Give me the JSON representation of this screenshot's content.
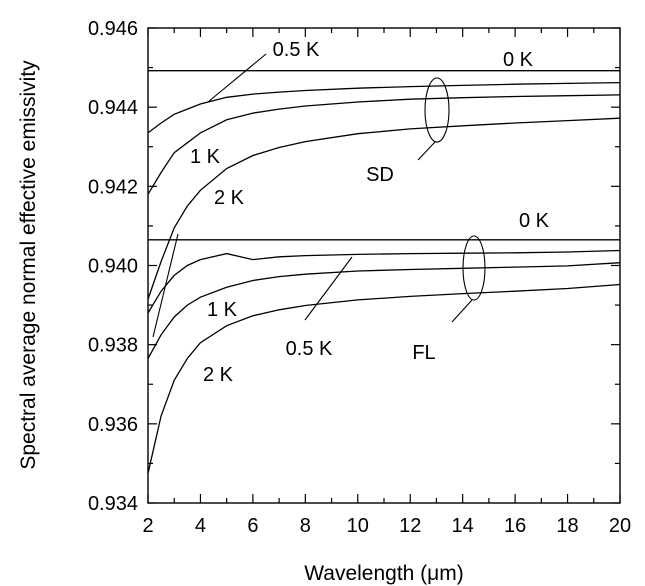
{
  "chart_data": {
    "type": "line",
    "title": "",
    "xlabel": "Wavelength (μm)",
    "ylabel": "Spectral average normal effective emissivity",
    "xlim": [
      2,
      20
    ],
    "ylim": [
      0.934,
      0.946
    ],
    "x_ticks": [
      2,
      4,
      6,
      8,
      10,
      12,
      14,
      16,
      18,
      20
    ],
    "x_tick_labels": [
      "2",
      "4",
      "6",
      "8",
      "10",
      "12",
      "14",
      "16",
      "18",
      "20"
    ],
    "y_ticks": [
      0.934,
      0.936,
      0.938,
      0.94,
      0.942,
      0.944,
      0.946
    ],
    "y_tick_labels": [
      "0.934",
      "0.936",
      "0.938",
      "0.940",
      "0.942",
      "0.944",
      "0.946"
    ],
    "grid": false,
    "series": [
      {
        "group": "SD",
        "label": "0 K",
        "x": [
          2,
          4,
          6,
          8,
          10,
          12,
          14,
          16,
          18,
          20
        ],
        "y": [
          0.94492,
          0.94492,
          0.94492,
          0.94492,
          0.94492,
          0.94492,
          0.94492,
          0.94492,
          0.94492,
          0.94492
        ]
      },
      {
        "group": "SD",
        "label": "0.5 K",
        "x": [
          2,
          2.5,
          3,
          3.5,
          4,
          5,
          6,
          7,
          8,
          10,
          12,
          14,
          16,
          18,
          20
        ],
        "y": [
          0.94335,
          0.9436,
          0.94382,
          0.94395,
          0.94408,
          0.94425,
          0.94433,
          0.94438,
          0.94442,
          0.94448,
          0.94452,
          0.94455,
          0.94458,
          0.9446,
          0.94462
        ]
      },
      {
        "group": "SD",
        "label": "1 K",
        "x": [
          2,
          2.5,
          3,
          3.5,
          4,
          5,
          6,
          7,
          8,
          10,
          12,
          14,
          16,
          18,
          20
        ],
        "y": [
          0.9418,
          0.94235,
          0.94285,
          0.9431,
          0.94335,
          0.94368,
          0.94385,
          0.94395,
          0.94403,
          0.94413,
          0.9442,
          0.94424,
          0.94427,
          0.94429,
          0.94431
        ]
      },
      {
        "group": "SD",
        "label": "2 K",
        "x": [
          2,
          2.5,
          3,
          3.5,
          4,
          5,
          6,
          7,
          8,
          10,
          12,
          14,
          16,
          18,
          20
        ],
        "y": [
          0.93915,
          0.9401,
          0.94095,
          0.9415,
          0.9419,
          0.94245,
          0.94278,
          0.94298,
          0.94313,
          0.94333,
          0.94345,
          0.94353,
          0.9436,
          0.94366,
          0.94372
        ]
      },
      {
        "group": "FL",
        "label": "0 K",
        "x": [
          2,
          4,
          6,
          8,
          10,
          12,
          14,
          16,
          18,
          20
        ],
        "y": [
          0.94065,
          0.94065,
          0.94065,
          0.94065,
          0.94065,
          0.94065,
          0.94065,
          0.94065,
          0.94065,
          0.94065
        ]
      },
      {
        "group": "FL",
        "label": "0.5 K",
        "x": [
          2,
          2.5,
          3,
          3.5,
          4,
          5,
          6,
          7,
          8,
          10,
          12,
          14,
          16,
          18,
          20
        ],
        "y": [
          0.9388,
          0.93935,
          0.93975,
          0.94,
          0.94015,
          0.9403,
          0.94015,
          0.94022,
          0.94025,
          0.94028,
          0.9403,
          0.94031,
          0.94032,
          0.94034,
          0.94038
        ]
      },
      {
        "group": "FL",
        "label": "1 K",
        "x": [
          2,
          2.5,
          3,
          3.5,
          4,
          5,
          6,
          7,
          8,
          10,
          12,
          14,
          16,
          18,
          20
        ],
        "y": [
          0.93765,
          0.93825,
          0.9387,
          0.939,
          0.9392,
          0.93945,
          0.93962,
          0.93972,
          0.93978,
          0.93986,
          0.9399,
          0.93993,
          0.93996,
          0.93999,
          0.94007
        ]
      },
      {
        "group": "FL",
        "label": "2 K",
        "x": [
          2,
          2.5,
          3,
          3.5,
          4,
          5,
          6,
          7,
          8,
          10,
          12,
          14,
          16,
          18,
          20
        ],
        "y": [
          0.93475,
          0.9362,
          0.9371,
          0.93765,
          0.93805,
          0.93848,
          0.93873,
          0.93888,
          0.93899,
          0.93913,
          0.93922,
          0.93929,
          0.93935,
          0.93942,
          0.93952
        ]
      }
    ],
    "annotations": [
      {
        "id": "sd-0k",
        "text": "0 K"
      },
      {
        "id": "sd-05k",
        "text": "0.5 K"
      },
      {
        "id": "sd-1k",
        "text": "1 K"
      },
      {
        "id": "sd-2k",
        "text": "2 K"
      },
      {
        "id": "sd-group",
        "text": "SD"
      },
      {
        "id": "fl-0k",
        "text": "0 K"
      },
      {
        "id": "fl-05k",
        "text": "0.5 K"
      },
      {
        "id": "fl-1k",
        "text": "1 K"
      },
      {
        "id": "fl-2k",
        "text": "2 K"
      },
      {
        "id": "fl-group",
        "text": "FL"
      }
    ]
  }
}
